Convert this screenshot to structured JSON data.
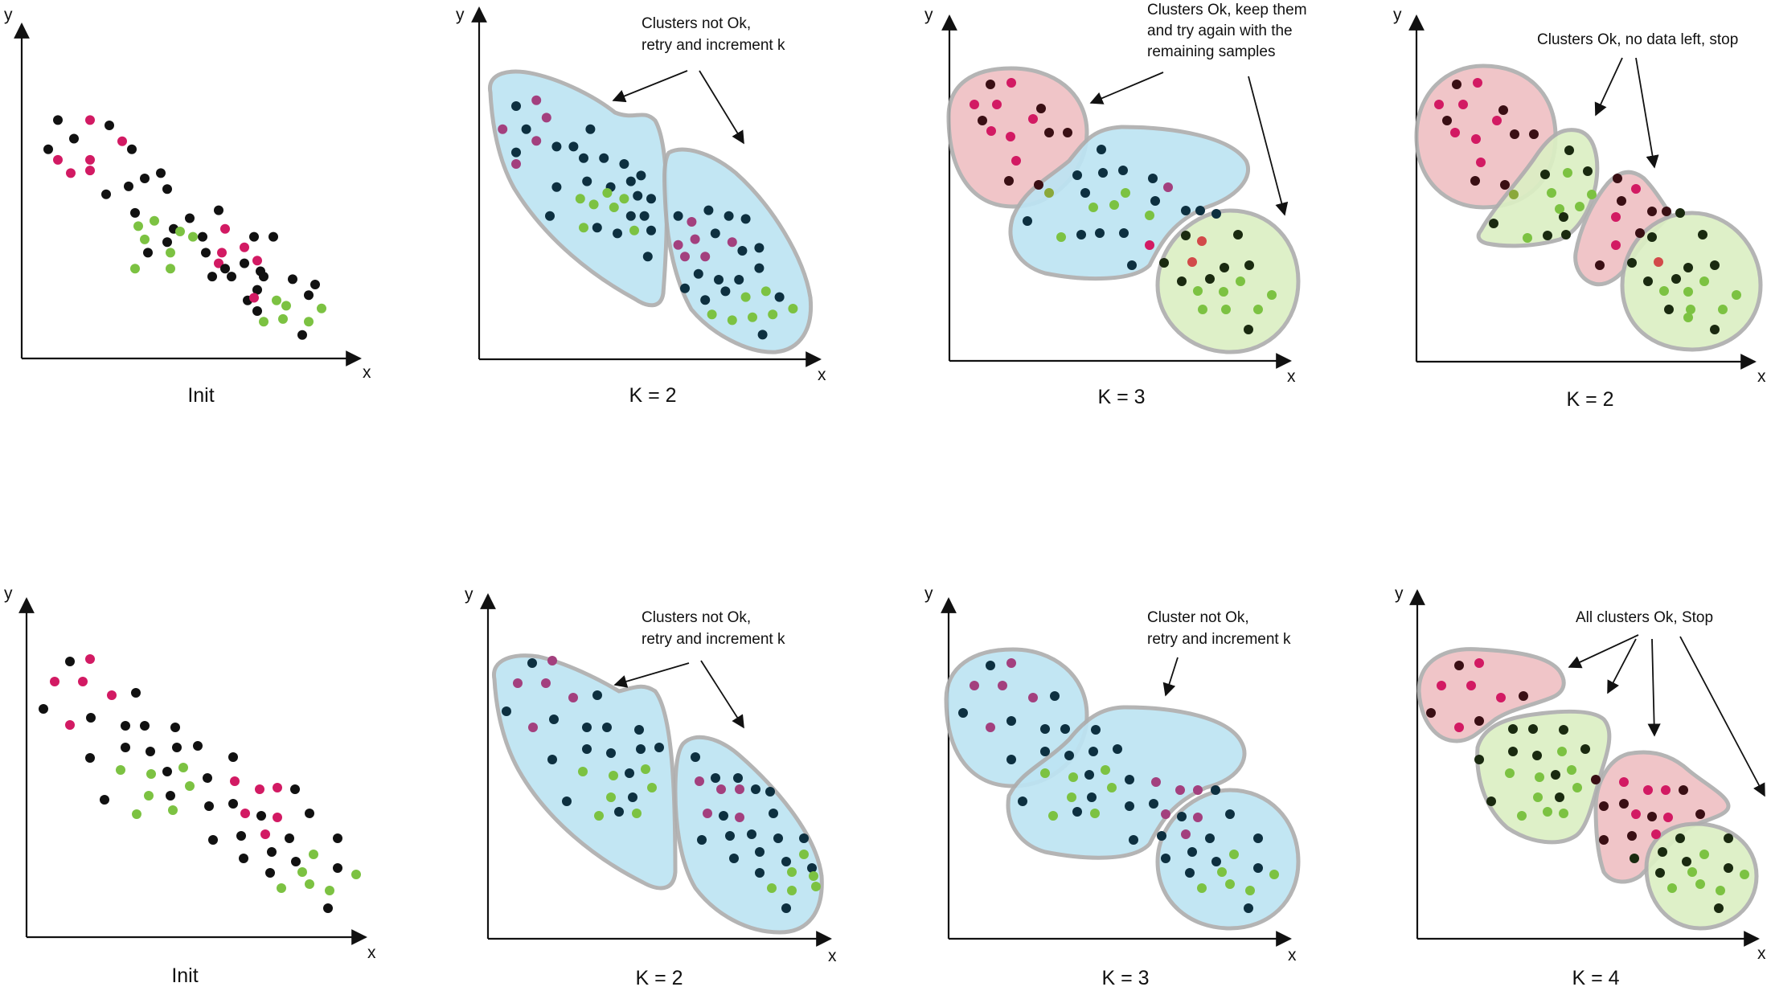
{
  "palette": {
    "black": "#111111",
    "dark": "#0d3040",
    "magenta": "#d21a63",
    "purple": "#a3407e",
    "green": "#7cc242",
    "blue_fill": "#bde4f3",
    "red_fill": "#efc1c4",
    "green_fill": "#dcefc4",
    "outline": "#aeaeae"
  },
  "panels": [
    {
      "id": "top-init",
      "caption": "Init",
      "x_label": "x",
      "y_label": "y",
      "annotation": [],
      "clusters": [],
      "arrows": [],
      "points": [
        [
          0.08,
          0.18,
          "black"
        ],
        [
          0.18,
          0.18,
          "magenta"
        ],
        [
          0.08,
          0.33,
          "magenta"
        ],
        [
          0.18,
          0.33,
          "magenta"
        ],
        [
          0.13,
          0.25,
          "black"
        ],
        [
          0.24,
          0.2,
          "black"
        ],
        [
          0.05,
          0.29,
          "black"
        ],
        [
          0.12,
          0.38,
          "magenta"
        ],
        [
          0.18,
          0.37,
          "magenta"
        ],
        [
          0.28,
          0.26,
          "magenta"
        ],
        [
          0.31,
          0.29,
          "black"
        ],
        [
          0.3,
          0.43,
          "black"
        ],
        [
          0.35,
          0.4,
          "black"
        ],
        [
          0.4,
          0.38,
          "black"
        ],
        [
          0.42,
          0.44,
          "black"
        ],
        [
          0.32,
          0.53,
          "black"
        ],
        [
          0.33,
          0.58,
          "green"
        ],
        [
          0.38,
          0.56,
          "green"
        ],
        [
          0.35,
          0.63,
          "green"
        ],
        [
          0.42,
          0.64,
          "black"
        ],
        [
          0.44,
          0.59,
          "black"
        ],
        [
          0.49,
          0.55,
          "black"
        ],
        [
          0.46,
          0.6,
          "green"
        ],
        [
          0.23,
          0.46,
          "black"
        ],
        [
          0.36,
          0.68,
          "black"
        ],
        [
          0.43,
          0.68,
          "green"
        ],
        [
          0.32,
          0.74,
          "green"
        ],
        [
          0.43,
          0.74,
          "green"
        ],
        [
          0.5,
          0.62,
          "green"
        ],
        [
          0.53,
          0.62,
          "black"
        ],
        [
          0.58,
          0.52,
          "black"
        ],
        [
          0.6,
          0.59,
          "magenta"
        ],
        [
          0.66,
          0.66,
          "magenta"
        ],
        [
          0.69,
          0.62,
          "black"
        ],
        [
          0.75,
          0.62,
          "black"
        ],
        [
          0.54,
          0.68,
          "black"
        ],
        [
          0.59,
          0.68,
          "magenta"
        ],
        [
          0.58,
          0.72,
          "magenta"
        ],
        [
          0.66,
          0.72,
          "black"
        ],
        [
          0.7,
          0.71,
          "magenta"
        ],
        [
          0.56,
          0.77,
          "black"
        ],
        [
          0.62,
          0.77,
          "black"
        ],
        [
          0.71,
          0.75,
          "black"
        ],
        [
          0.72,
          0.77,
          "black"
        ],
        [
          0.81,
          0.78,
          "black"
        ],
        [
          0.7,
          0.82,
          "black"
        ],
        [
          0.67,
          0.86,
          "black"
        ],
        [
          0.69,
          0.85,
          "magenta"
        ],
        [
          0.76,
          0.86,
          "green"
        ],
        [
          0.86,
          0.84,
          "black"
        ],
        [
          0.88,
          0.8,
          "black"
        ],
        [
          0.79,
          0.88,
          "green"
        ],
        [
          0.9,
          0.89,
          "green"
        ],
        [
          0.7,
          0.9,
          "black"
        ],
        [
          0.72,
          0.94,
          "green"
        ],
        [
          0.78,
          0.93,
          "green"
        ],
        [
          0.86,
          0.94,
          "green"
        ],
        [
          0.84,
          0.99,
          "black"
        ],
        [
          0.6,
          0.74,
          "black"
        ]
      ]
    },
    {
      "id": "top-k2",
      "caption": "K = 2",
      "x_label": "x",
      "y_label": "y",
      "annotation": [
        "Clusters  not Ok,",
        "retry and increment k"
      ],
      "clusters": [
        {
          "color": "blue_fill",
          "shape": "elongated-left"
        },
        {
          "color": "blue_fill",
          "shape": "right-oval"
        }
      ],
      "arrows": [
        "to-left-cluster",
        "to-right-cluster"
      ],
      "points": [
        [
          0.1,
          0.2,
          "dark"
        ],
        [
          0.16,
          0.18,
          "purple"
        ],
        [
          0.06,
          0.28,
          "purple"
        ],
        [
          0.13,
          0.28,
          "dark"
        ],
        [
          0.19,
          0.24,
          "purple"
        ],
        [
          0.1,
          0.36,
          "dark"
        ],
        [
          0.16,
          0.32,
          "purple"
        ],
        [
          0.1,
          0.4,
          "purple"
        ],
        [
          0.22,
          0.34,
          "dark"
        ],
        [
          0.27,
          0.34,
          "dark"
        ],
        [
          0.32,
          0.28,
          "dark"
        ],
        [
          0.3,
          0.38,
          "dark"
        ],
        [
          0.36,
          0.38,
          "dark"
        ],
        [
          0.42,
          0.4,
          "dark"
        ],
        [
          0.31,
          0.46,
          "dark"
        ],
        [
          0.38,
          0.48,
          "dark"
        ],
        [
          0.44,
          0.46,
          "dark"
        ],
        [
          0.47,
          0.44,
          "dark"
        ],
        [
          0.22,
          0.48,
          "dark"
        ],
        [
          0.29,
          0.52,
          "green"
        ],
        [
          0.33,
          0.54,
          "green"
        ],
        [
          0.37,
          0.5,
          "green"
        ],
        [
          0.42,
          0.52,
          "green"
        ],
        [
          0.46,
          0.51,
          "dark"
        ],
        [
          0.5,
          0.52,
          "dark"
        ],
        [
          0.39,
          0.55,
          "green"
        ],
        [
          0.44,
          0.58,
          "dark"
        ],
        [
          0.48,
          0.58,
          "dark"
        ],
        [
          0.2,
          0.58,
          "dark"
        ],
        [
          0.3,
          0.62,
          "green"
        ],
        [
          0.34,
          0.62,
          "dark"
        ],
        [
          0.4,
          0.64,
          "dark"
        ],
        [
          0.45,
          0.63,
          "green"
        ],
        [
          0.5,
          0.63,
          "dark"
        ],
        [
          0.58,
          0.58,
          "dark"
        ],
        [
          0.62,
          0.6,
          "purple"
        ],
        [
          0.67,
          0.56,
          "dark"
        ],
        [
          0.63,
          0.66,
          "purple"
        ],
        [
          0.69,
          0.64,
          "dark"
        ],
        [
          0.73,
          0.58,
          "dark"
        ],
        [
          0.78,
          0.59,
          "dark"
        ],
        [
          0.58,
          0.68,
          "purple"
        ],
        [
          0.6,
          0.72,
          "purple"
        ],
        [
          0.66,
          0.72,
          "purple"
        ],
        [
          0.74,
          0.67,
          "purple"
        ],
        [
          0.77,
          0.7,
          "dark"
        ],
        [
          0.82,
          0.69,
          "dark"
        ],
        [
          0.64,
          0.78,
          "dark"
        ],
        [
          0.7,
          0.8,
          "dark"
        ],
        [
          0.76,
          0.8,
          "dark"
        ],
        [
          0.82,
          0.76,
          "dark"
        ],
        [
          0.6,
          0.83,
          "dark"
        ],
        [
          0.66,
          0.87,
          "dark"
        ],
        [
          0.72,
          0.84,
          "dark"
        ],
        [
          0.78,
          0.86,
          "green"
        ],
        [
          0.84,
          0.84,
          "green"
        ],
        [
          0.88,
          0.86,
          "dark"
        ],
        [
          0.68,
          0.92,
          "green"
        ],
        [
          0.74,
          0.94,
          "green"
        ],
        [
          0.8,
          0.93,
          "green"
        ],
        [
          0.86,
          0.92,
          "green"
        ],
        [
          0.92,
          0.9,
          "green"
        ],
        [
          0.83,
          0.99,
          "dark"
        ],
        [
          0.49,
          0.72,
          "dark"
        ]
      ]
    },
    {
      "id": "top-k3",
      "caption": "K = 3",
      "x_label": "x",
      "y_label": "y",
      "annotation": [
        "Clusters  Ok, keep them",
        "and try again with the",
        "remaining samples"
      ],
      "clusters": [
        {
          "color": "red_fill",
          "shape": "top-left-circle"
        },
        {
          "color": "blue_fill",
          "shape": "middle-band"
        },
        {
          "color": "green_fill",
          "shape": "bottom-right-circle"
        }
      ],
      "arrows": [
        "to-red",
        "to-green"
      ],
      "points": []
    },
    {
      "id": "top-k2b",
      "caption": "K = 2",
      "x_label": "x",
      "y_label": "y",
      "annotation": [
        "Clusters  Ok, no data left, stop"
      ],
      "clusters": [
        {
          "color": "red_fill",
          "shape": "top-left-circle"
        },
        {
          "color": "green_fill",
          "shape": "small-green"
        },
        {
          "color": "red_fill",
          "shape": "small-red"
        },
        {
          "color": "green_fill",
          "shape": "bottom-right-circle"
        }
      ],
      "arrows": [
        "to-small-green",
        "to-small-red"
      ],
      "points": []
    },
    {
      "id": "bottom-init",
      "caption": "Init",
      "x_label": "x",
      "y_label": "y",
      "annotation": [],
      "clusters": [],
      "arrows": [],
      "points": []
    },
    {
      "id": "bottom-k2",
      "caption": "K = 2",
      "x_label": "x",
      "y_label": "y",
      "annotation": [
        "Clusters  not Ok,",
        "retry and increment k"
      ],
      "clusters": [
        {
          "color": "blue_fill",
          "shape": "elongated-left"
        },
        {
          "color": "blue_fill",
          "shape": "right-oval"
        }
      ],
      "arrows": [
        "to-left-cluster",
        "to-right-cluster"
      ],
      "points": []
    },
    {
      "id": "bottom-k3",
      "caption": "K = 3",
      "x_label": "x",
      "y_label": "y",
      "annotation": [
        "Cluster  not Ok,",
        "retry and increment k"
      ],
      "clusters": [
        {
          "color": "blue_fill",
          "shape": "top-left-circle"
        },
        {
          "color": "blue_fill",
          "shape": "middle-band"
        },
        {
          "color": "blue_fill",
          "shape": "bottom-right-circle"
        }
      ],
      "arrows": [
        "to-middle"
      ],
      "points": []
    },
    {
      "id": "bottom-k4",
      "caption": "K = 4",
      "x_label": "x",
      "y_label": "y",
      "annotation": [
        "All clusters  Ok, Stop"
      ],
      "clusters": [
        {
          "color": "red_fill",
          "shape": "top-left-small"
        },
        {
          "color": "green_fill",
          "shape": "green-mid"
        },
        {
          "color": "red_fill",
          "shape": "red-mid"
        },
        {
          "color": "green_fill",
          "shape": "green-bottom"
        }
      ],
      "arrows": [
        "to-red-1",
        "to-green-1",
        "to-red-2",
        "to-green-2"
      ],
      "points": []
    }
  ]
}
